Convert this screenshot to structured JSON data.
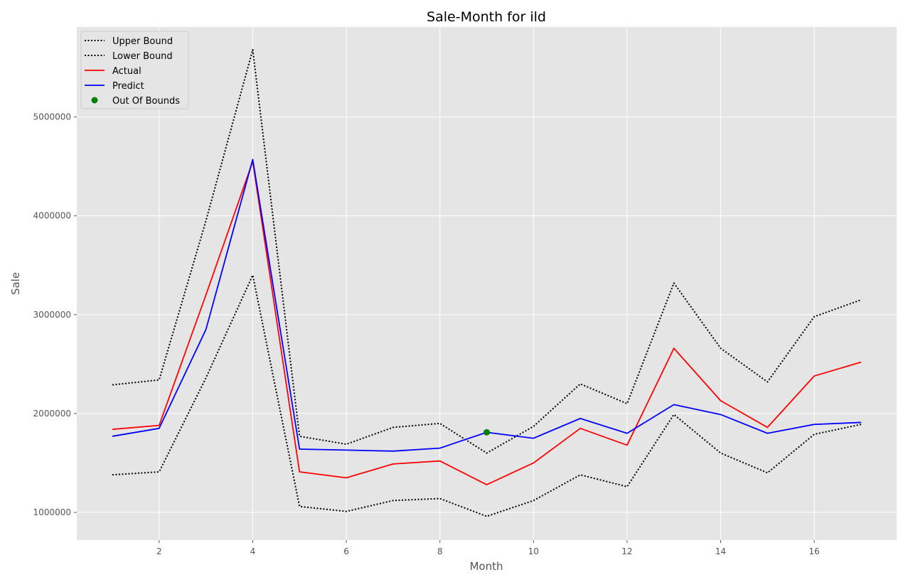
{
  "chart_data": {
    "type": "line",
    "title": "Sale-Month for ild",
    "xlabel": "Month",
    "ylabel": "Sale",
    "xlim": [
      0.24,
      17.76
    ],
    "ylim": [
      720000,
      5910000
    ],
    "xticks": [
      2,
      4,
      6,
      8,
      10,
      12,
      14,
      16
    ],
    "yticks": [
      1000000,
      2000000,
      3000000,
      4000000,
      5000000
    ],
    "grid": true,
    "legend_position": "upper-left",
    "x": [
      1,
      2,
      3,
      4,
      5,
      6,
      7,
      8,
      9,
      10,
      11,
      12,
      13,
      14,
      15,
      16,
      17
    ],
    "series": [
      {
        "name": "Upper Bound",
        "color": "#000000",
        "style": "dotted",
        "values": [
          2290000,
          2340000,
          3950000,
          5680000,
          1770000,
          1690000,
          1860000,
          1900000,
          1600000,
          1870000,
          2300000,
          2100000,
          3320000,
          2660000,
          2320000,
          2980000,
          3150000
        ]
      },
      {
        "name": "Lower Bound",
        "color": "#000000",
        "style": "dotted",
        "values": [
          1380000,
          1410000,
          2360000,
          3400000,
          1060000,
          1010000,
          1120000,
          1140000,
          960000,
          1120000,
          1380000,
          1260000,
          1990000,
          1600000,
          1400000,
          1790000,
          1890000
        ]
      },
      {
        "name": "Actual",
        "color": "#ff0000",
        "style": "solid",
        "values": [
          1840000,
          1880000,
          3200000,
          4550000,
          1410000,
          1350000,
          1490000,
          1520000,
          1280000,
          1500000,
          1850000,
          1680000,
          2660000,
          2130000,
          1860000,
          2380000,
          2520000
        ]
      },
      {
        "name": "Predict",
        "color": "#0000ff",
        "style": "solid",
        "values": [
          1770000,
          1850000,
          2850000,
          4570000,
          1640000,
          1630000,
          1620000,
          1650000,
          1810000,
          1750000,
          1950000,
          1800000,
          2090000,
          1990000,
          1800000,
          1890000,
          1910000
        ]
      }
    ],
    "markers": {
      "name": "Out Of Bounds",
      "color": "#008000",
      "points": [
        {
          "x": 9,
          "y": 1810000
        }
      ]
    }
  }
}
